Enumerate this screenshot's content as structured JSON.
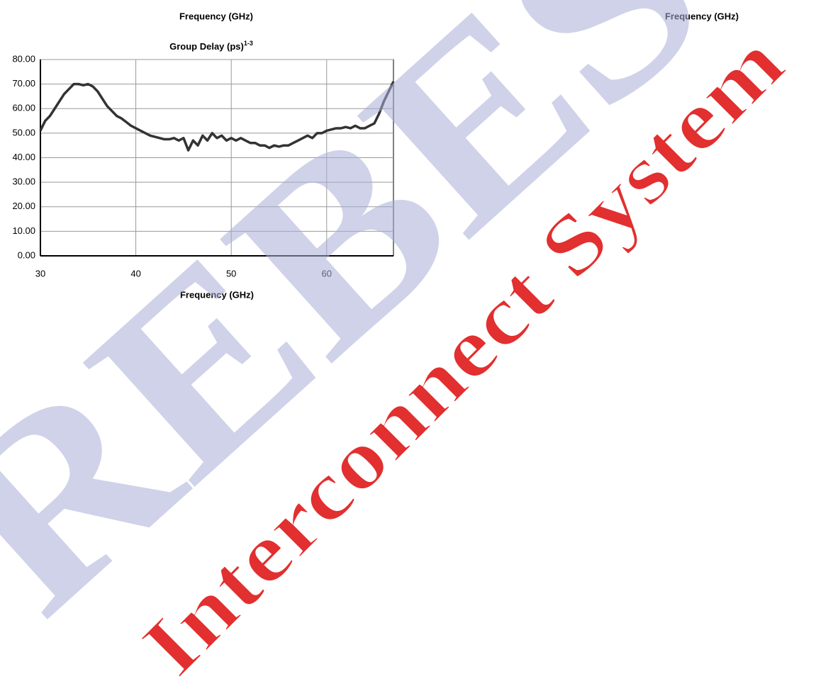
{
  "top_labels": [
    "Frequency (GHz)",
    "Frequency (GHz)"
  ],
  "watermark": {
    "brand": "REBES",
    "tagline": "Interconnect System"
  },
  "chart_data": {
    "type": "line",
    "title": "Group Delay (ps)",
    "title_superscript": "1-3",
    "xlabel": "Frequency (GHz)",
    "color": "#333333",
    "grid": true,
    "xlim": [
      30,
      67
    ],
    "xticks": [
      30,
      40,
      50,
      60
    ],
    "ylim": [
      0,
      80
    ],
    "yticks": [
      {
        "value": 0,
        "label": "0.00"
      },
      {
        "value": 10,
        "label": "10.00"
      },
      {
        "value": 20,
        "label": "20.00"
      },
      {
        "value": 30,
        "label": "30.00"
      },
      {
        "value": 40,
        "label": "40.00"
      },
      {
        "value": 50,
        "label": "50.00"
      },
      {
        "value": 60,
        "label": "60.00"
      },
      {
        "value": 70,
        "label": "70.00"
      },
      {
        "value": 80,
        "label": "80.00"
      }
    ],
    "x": [
      30,
      30.5,
      31,
      31.5,
      32,
      32.5,
      33,
      33.5,
      34,
      34.5,
      35,
      35.5,
      36,
      36.5,
      37,
      37.5,
      38,
      38.5,
      39,
      39.5,
      40,
      40.5,
      41,
      41.5,
      42,
      42.5,
      43,
      43.5,
      44,
      44.5,
      45,
      45.5,
      46,
      46.5,
      47,
      47.5,
      48,
      48.5,
      49,
      49.5,
      50,
      50.5,
      51,
      51.5,
      52,
      52.5,
      53,
      53.5,
      54,
      54.5,
      55,
      55.5,
      56,
      56.5,
      57,
      57.5,
      58,
      58.5,
      59,
      59.5,
      60,
      60.5,
      61,
      61.5,
      62,
      62.5,
      63,
      63.5,
      64,
      64.5,
      65,
      65.5,
      66,
      66.5,
      67
    ],
    "values": [
      51,
      55,
      57,
      60,
      63,
      66,
      68,
      70,
      70,
      69.5,
      70,
      69,
      67,
      64,
      61,
      59,
      57,
      56,
      54.5,
      53,
      52,
      51,
      50,
      49,
      48.5,
      48,
      47.5,
      47.5,
      48,
      47,
      48,
      43,
      47,
      45,
      49,
      47,
      50,
      48,
      49,
      47,
      48,
      47,
      48,
      47,
      46,
      46,
      45,
      45,
      44,
      45,
      44.5,
      45,
      45,
      46,
      47,
      48,
      49,
      48,
      50,
      50,
      51,
      51.5,
      52,
      52,
      52.5,
      52,
      53,
      52,
      52,
      53,
      54,
      58,
      63,
      67,
      71
    ]
  }
}
